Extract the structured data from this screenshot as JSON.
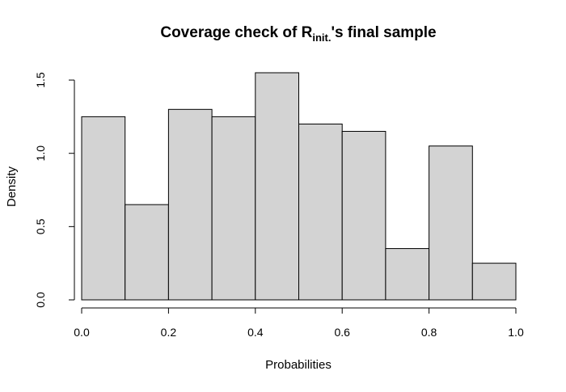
{
  "chart_data": {
    "type": "bar",
    "title": {
      "main": "Coverage check of R",
      "subscript": "init.",
      "suffix": "'s final sample"
    },
    "xlabel": "Probabilities",
    "ylabel": "Density",
    "bin_edges": [
      0.0,
      0.1,
      0.2,
      0.3,
      0.4,
      0.5,
      0.6,
      0.7,
      0.8,
      0.9,
      1.0
    ],
    "values": [
      1.25,
      0.65,
      1.3,
      1.25,
      1.55,
      1.2,
      1.15,
      0.35,
      1.05,
      0.25
    ],
    "xlim": [
      0.0,
      1.0
    ],
    "ylim": [
      0.0,
      1.55
    ],
    "x_ticks": [
      "0.0",
      "0.2",
      "0.4",
      "0.6",
      "0.8",
      "1.0"
    ],
    "y_ticks": [
      "0.0",
      "0.5",
      "1.0",
      "1.5"
    ],
    "bar_fill": "#d3d3d3",
    "bar_stroke": "#000000",
    "grid": false,
    "legend": "none"
  }
}
